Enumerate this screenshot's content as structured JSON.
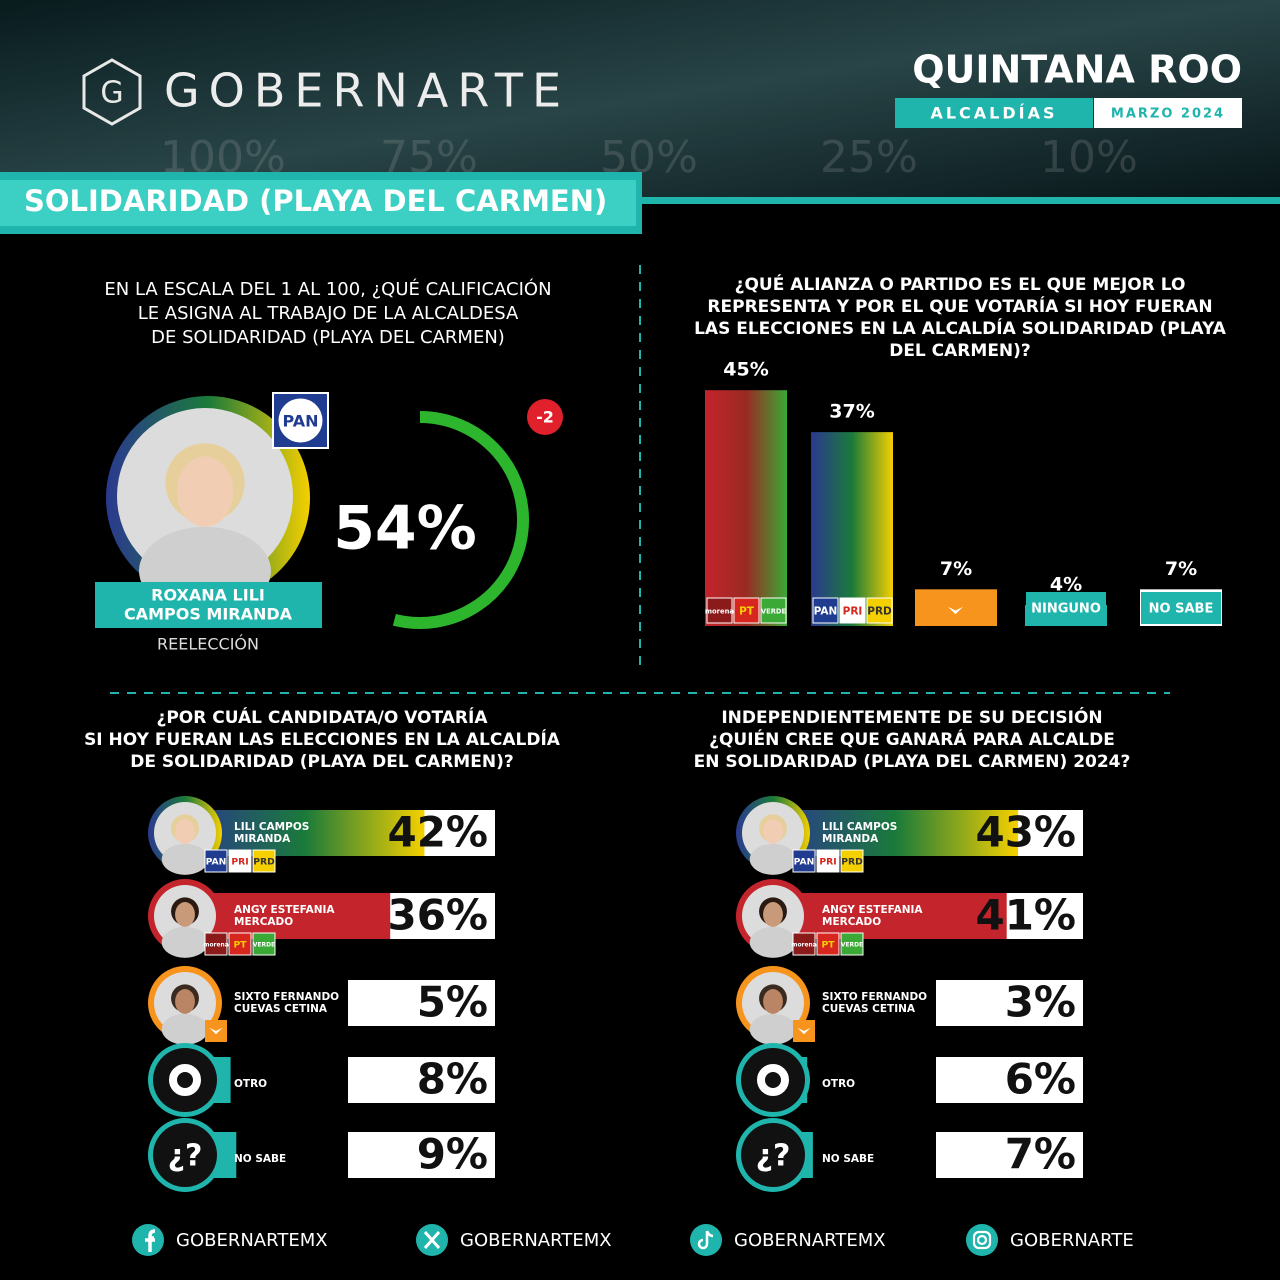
{
  "header": {
    "brand_mark": "G",
    "brand": "GOBERNARTE",
    "state": "QUINTANA ROO",
    "section": "ALCALDÍAS",
    "date": "MARZO 2024",
    "background_labels": [
      "100%",
      "75%",
      "50%",
      "25%",
      "10%"
    ],
    "municipality": "SOLIDARIDAD (PLAYA DEL CARMEN)"
  },
  "approval": {
    "question": [
      "EN LA ESCALA DEL 1 AL 100, ¿QUÉ CALIFICACIÓN",
      "LE ASIGNA AL TRABAJO DE LA ALCALDESA",
      "DE SOLIDARIDAD (PLAYA DEL CARMEN)"
    ],
    "party": "PAN",
    "name": [
      "ROXANA LILI",
      "CAMPOS MIRANDA"
    ],
    "status": "REELECCIÓN",
    "value": 54,
    "value_label": "54%",
    "change": -2,
    "color": "#2db52d"
  },
  "chart_data": [
    {
      "type": "bar",
      "title": [
        "¿QUÉ ALIANZA O PARTIDO ES EL QUE MEJOR LO",
        "REPRESENTA Y POR EL QUE VOTARÍA SI HOY FUERAN",
        "LAS ELECCIONES EN LA ALCALDÍA SOLIDARIDAD (PLAYA",
        "DEL CARMEN)?"
      ],
      "categories": [
        null,
        null,
        null,
        "NINGUNO",
        "NO SABE"
      ],
      "parties": [
        [
          "morena",
          "PT",
          "VERDE"
        ],
        [
          "PAN",
          "PRI",
          "PRD"
        ],
        [],
        [],
        []
      ],
      "values": [
        45,
        37,
        7,
        4,
        7
      ],
      "value_labels": [
        "45%",
        "37%",
        "7%",
        "4%",
        "7%"
      ],
      "colors": [
        [
          "#c4242b",
          "#9a2a22",
          "#3aa935"
        ],
        [
          "#2b3990",
          "#1a7a3a",
          "#f5d000"
        ],
        [
          "#f7941d"
        ],
        [
          "#1fb5ad"
        ],
        [
          "#ffffff"
        ]
      ]
    },
    {
      "type": "candidate-bar",
      "title": [
        "¿POR CUÁL CANDIDATA/O VOTARÍA",
        "SI HOY FUERAN LAS ELECCIONES EN LA ALCALDÍA",
        "DE SOLIDARIDAD (PLAYA DEL CARMEN)?"
      ],
      "categories": [
        [
          "LILI CAMPOS",
          "MIRANDA"
        ],
        [
          "ANGY ESTEFANIA",
          "MERCADO"
        ],
        [
          "SIXTO FERNANDO",
          "CUEVAS CETINA"
        ],
        [
          "OTRO"
        ],
        [
          "NO SABE"
        ]
      ],
      "parties": [
        [
          "PAN",
          "PRI",
          "PRD"
        ],
        [
          "morena",
          "PT",
          "VERDE"
        ],
        [],
        [],
        []
      ],
      "values": [
        42,
        36,
        5,
        8,
        9
      ],
      "value_labels": [
        "42%",
        "36%",
        "5%",
        "8%",
        "9%"
      ],
      "colors": [
        [
          "#2b3990",
          "#1a7a3a",
          "#f5d000"
        ],
        [
          "#c4242b"
        ],
        [
          "#f7941d"
        ],
        [
          "#1fb5ad"
        ],
        [
          "#1fb5ad"
        ]
      ]
    },
    {
      "type": "candidate-bar",
      "title": [
        "INDEPENDIENTEMENTE DE SU DECISIÓN",
        "¿QUIÉN CREE QUE GANARÁ PARA ALCALDE",
        "EN SOLIDARIDAD (PLAYA DEL CARMEN) 2024?"
      ],
      "categories": [
        [
          "LILI CAMPOS",
          "MIRANDA"
        ],
        [
          "ANGY ESTEFANIA",
          "MERCADO"
        ],
        [
          "SIXTO FERNANDO",
          "CUEVAS CETINA"
        ],
        [
          "OTRO"
        ],
        [
          "NO SABE"
        ]
      ],
      "parties": [
        [
          "PAN",
          "PRI",
          "PRD"
        ],
        [
          "morena",
          "PT",
          "VERDE"
        ],
        [],
        [],
        []
      ],
      "values": [
        43,
        41,
        3,
        6,
        7
      ],
      "value_labels": [
        "43%",
        "41%",
        "3%",
        "6%",
        "7%"
      ],
      "colors": [
        [
          "#2b3990",
          "#1a7a3a",
          "#f5d000"
        ],
        [
          "#c4242b"
        ],
        [
          "#f7941d"
        ],
        [
          "#1fb5ad"
        ],
        [
          "#1fb5ad"
        ]
      ]
    }
  ],
  "unknown_icon": "¿?",
  "footer": {
    "social": [
      "GOBERNARTEMX",
      "GOBERNARTEMX",
      "GOBERNARTEMX",
      "GOBERNARTE"
    ]
  }
}
